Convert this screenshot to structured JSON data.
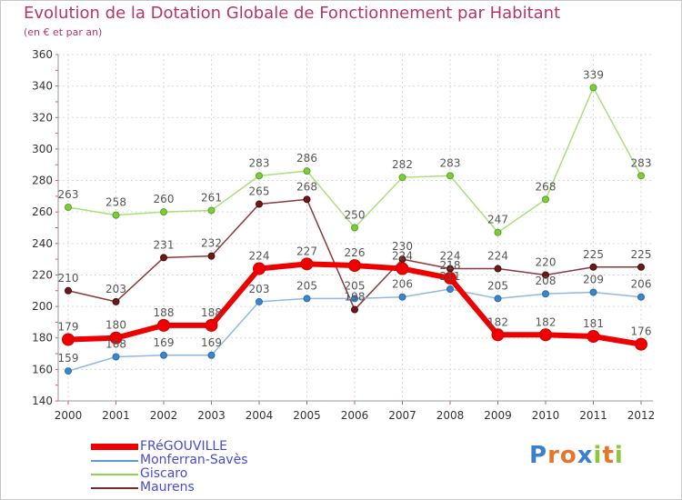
{
  "title": "Evolution de la Dotation Globale de Fonctionnement par Habitant",
  "subtitle": "(en € et par an)",
  "brand": "Proxiti",
  "chart_data": {
    "type": "line",
    "title": "Evolution de la Dotation Globale de Fonctionnement par Habitant",
    "subtitle": "(en € et par an)",
    "xlabel": "",
    "ylabel": "",
    "x": [
      "2000",
      "2001",
      "2002",
      "2003",
      "2004",
      "2005",
      "2006",
      "2007",
      "2008",
      "2009",
      "2010",
      "2011",
      "2012"
    ],
    "ylim": [
      140,
      360
    ],
    "yticks": [
      140,
      160,
      180,
      200,
      220,
      240,
      260,
      280,
      300,
      320,
      340,
      360
    ],
    "grid": true,
    "legend_position": "bottom-left",
    "series": [
      {
        "name": "FRéGOUVILLE",
        "color": "#ee0000",
        "values": [
          179,
          180,
          188,
          188,
          224,
          227,
          226,
          224,
          218,
          182,
          182,
          181,
          176
        ]
      },
      {
        "name": "Monferran-Savès",
        "color": "#5b9bd5",
        "values": [
          159,
          168,
          169,
          169,
          203,
          205,
          205,
          206,
          211,
          205,
          208,
          209,
          206
        ]
      },
      {
        "name": "Giscaro",
        "color": "#8fd44a",
        "values": [
          263,
          258,
          260,
          261,
          283,
          286,
          250,
          282,
          283,
          247,
          268,
          339,
          283
        ]
      },
      {
        "name": "Maurens",
        "color": "#7a2a2a",
        "values": [
          210,
          203,
          231,
          232,
          265,
          268,
          198,
          230,
          224,
          224,
          220,
          225,
          225
        ]
      }
    ]
  }
}
